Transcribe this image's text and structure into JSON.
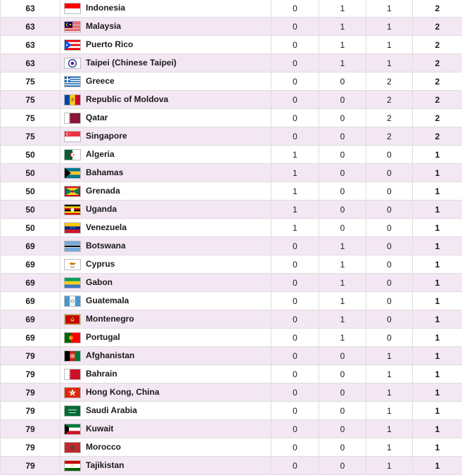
{
  "colors": {
    "row_alt": "#f3e7f3",
    "row": "#ffffff",
    "border": "#dddddd"
  },
  "rows": [
    {
      "rank": "63",
      "country": "Indonesia",
      "flag": "indonesia-flag-icon",
      "gold": "0",
      "silver": "1",
      "bronze": "1",
      "total": "2"
    },
    {
      "rank": "63",
      "country": "Malaysia",
      "flag": "malaysia-flag-icon",
      "gold": "0",
      "silver": "1",
      "bronze": "1",
      "total": "2"
    },
    {
      "rank": "63",
      "country": "Puerto Rico",
      "flag": "puerto-rico-flag-icon",
      "gold": "0",
      "silver": "1",
      "bronze": "1",
      "total": "2"
    },
    {
      "rank": "63",
      "country": "Taipei (Chinese Taipei)",
      "flag": "chinese-taipei-flag-icon",
      "gold": "0",
      "silver": "1",
      "bronze": "1",
      "total": "2"
    },
    {
      "rank": "75",
      "country": "Greece",
      "flag": "greece-flag-icon",
      "gold": "0",
      "silver": "0",
      "bronze": "2",
      "total": "2"
    },
    {
      "rank": "75",
      "country": "Republic of Moldova",
      "flag": "moldova-flag-icon",
      "gold": "0",
      "silver": "0",
      "bronze": "2",
      "total": "2"
    },
    {
      "rank": "75",
      "country": "Qatar",
      "flag": "qatar-flag-icon",
      "gold": "0",
      "silver": "0",
      "bronze": "2",
      "total": "2"
    },
    {
      "rank": "75",
      "country": "Singapore",
      "flag": "singapore-flag-icon",
      "gold": "0",
      "silver": "0",
      "bronze": "2",
      "total": "2"
    },
    {
      "rank": "50",
      "country": "Algeria",
      "flag": "algeria-flag-icon",
      "gold": "1",
      "silver": "0",
      "bronze": "0",
      "total": "1"
    },
    {
      "rank": "50",
      "country": "Bahamas",
      "flag": "bahamas-flag-icon",
      "gold": "1",
      "silver": "0",
      "bronze": "0",
      "total": "1"
    },
    {
      "rank": "50",
      "country": "Grenada",
      "flag": "grenada-flag-icon",
      "gold": "1",
      "silver": "0",
      "bronze": "0",
      "total": "1"
    },
    {
      "rank": "50",
      "country": "Uganda",
      "flag": "uganda-flag-icon",
      "gold": "1",
      "silver": "0",
      "bronze": "0",
      "total": "1"
    },
    {
      "rank": "50",
      "country": "Venezuela",
      "flag": "venezuela-flag-icon",
      "gold": "1",
      "silver": "0",
      "bronze": "0",
      "total": "1"
    },
    {
      "rank": "69",
      "country": "Botswana",
      "flag": "botswana-flag-icon",
      "gold": "0",
      "silver": "1",
      "bronze": "0",
      "total": "1"
    },
    {
      "rank": "69",
      "country": "Cyprus",
      "flag": "cyprus-flag-icon",
      "gold": "0",
      "silver": "1",
      "bronze": "0",
      "total": "1"
    },
    {
      "rank": "69",
      "country": "Gabon",
      "flag": "gabon-flag-icon",
      "gold": "0",
      "silver": "1",
      "bronze": "0",
      "total": "1"
    },
    {
      "rank": "69",
      "country": "Guatemala",
      "flag": "guatemala-flag-icon",
      "gold": "0",
      "silver": "1",
      "bronze": "0",
      "total": "1"
    },
    {
      "rank": "69",
      "country": "Montenegro",
      "flag": "montenegro-flag-icon",
      "gold": "0",
      "silver": "1",
      "bronze": "0",
      "total": "1"
    },
    {
      "rank": "69",
      "country": "Portugal",
      "flag": "portugal-flag-icon",
      "gold": "0",
      "silver": "1",
      "bronze": "0",
      "total": "1"
    },
    {
      "rank": "79",
      "country": "Afghanistan",
      "flag": "afghanistan-flag-icon",
      "gold": "0",
      "silver": "0",
      "bronze": "1",
      "total": "1"
    },
    {
      "rank": "79",
      "country": "Bahrain",
      "flag": "bahrain-flag-icon",
      "gold": "0",
      "silver": "0",
      "bronze": "1",
      "total": "1"
    },
    {
      "rank": "79",
      "country": "Hong Kong, China",
      "flag": "hong-kong-flag-icon",
      "gold": "0",
      "silver": "0",
      "bronze": "1",
      "total": "1"
    },
    {
      "rank": "79",
      "country": "Saudi Arabia",
      "flag": "saudi-arabia-flag-icon",
      "gold": "0",
      "silver": "0",
      "bronze": "1",
      "total": "1"
    },
    {
      "rank": "79",
      "country": "Kuwait",
      "flag": "kuwait-flag-icon",
      "gold": "0",
      "silver": "0",
      "bronze": "1",
      "total": "1"
    },
    {
      "rank": "79",
      "country": "Morocco",
      "flag": "morocco-flag-icon",
      "gold": "0",
      "silver": "0",
      "bronze": "1",
      "total": "1"
    },
    {
      "rank": "79",
      "country": "Tajikistan",
      "flag": "tajikistan-flag-icon",
      "gold": "0",
      "silver": "0",
      "bronze": "1",
      "total": "1"
    }
  ]
}
